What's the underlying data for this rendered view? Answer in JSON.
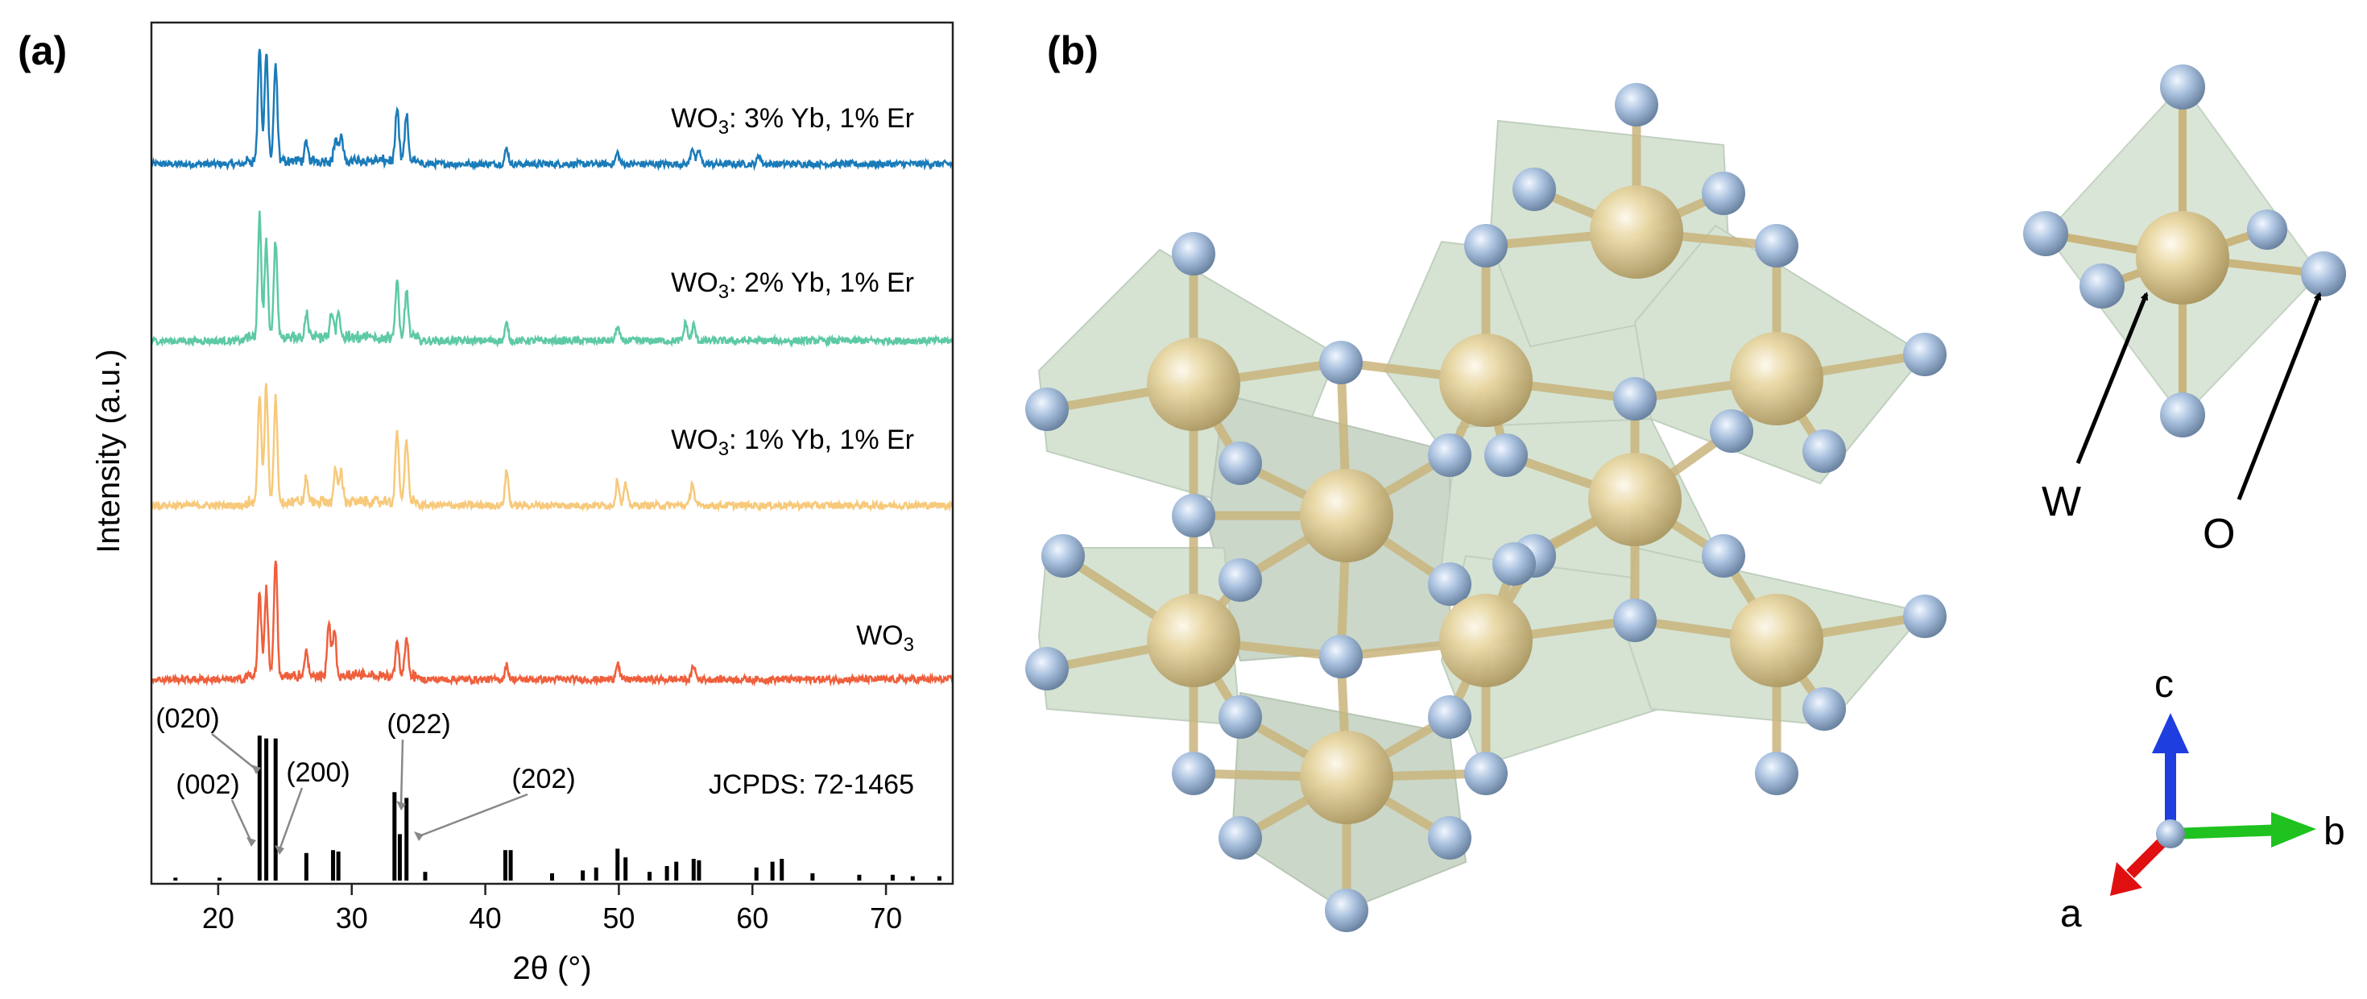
{
  "panel_a": {
    "label": "(a)",
    "chart_data": {
      "type": "line",
      "xlabel": "2θ (°)",
      "ylabel": "Intensity (a.u.)",
      "xlim": [
        15,
        75
      ],
      "xticks": [
        20,
        30,
        40,
        50,
        60,
        70
      ],
      "tick_labels": [
        "20",
        "30",
        "40",
        "50",
        "60",
        "70"
      ],
      "y_values_shown": false,
      "series": [
        {
          "name": "WO3: 3% Yb, 1% Er",
          "label_main": "WO",
          "label_sub": "3",
          "label_rest": ": 3% Yb, 1% Er",
          "color": "#1a7bb9",
          "peaks": [
            [
              23.1,
              1.0
            ],
            [
              23.6,
              0.95
            ],
            [
              24.3,
              0.85
            ],
            [
              26.6,
              0.15
            ],
            [
              28.8,
              0.2
            ],
            [
              29.2,
              0.22
            ],
            [
              33.4,
              0.45
            ],
            [
              34.1,
              0.4
            ],
            [
              41.6,
              0.14
            ],
            [
              49.9,
              0.1
            ],
            [
              55.5,
              0.15
            ],
            [
              56.0,
              0.12
            ],
            [
              60.5,
              0.08
            ]
          ]
        },
        {
          "name": "WO3: 2% Yb, 1% Er",
          "label_main": "WO",
          "label_sub": "3",
          "label_rest": ": 2% Yb, 1% Er",
          "color": "#5ec9a6",
          "peaks": [
            [
              23.1,
              1.0
            ],
            [
              23.6,
              0.8
            ],
            [
              24.3,
              0.8
            ],
            [
              26.6,
              0.2
            ],
            [
              28.5,
              0.2
            ],
            [
              29.0,
              0.22
            ],
            [
              33.4,
              0.45
            ],
            [
              34.1,
              0.4
            ],
            [
              41.6,
              0.14
            ],
            [
              49.9,
              0.12
            ],
            [
              55.0,
              0.15
            ],
            [
              55.6,
              0.13
            ]
          ]
        },
        {
          "name": "WO3: 1% Yb, 1% Er",
          "label_main": "WO",
          "label_sub": "3",
          "label_rest": ": 1% Yb, 1% Er",
          "color": "#f7c97a",
          "peaks": [
            [
              23.1,
              0.95
            ],
            [
              23.6,
              1.0
            ],
            [
              24.3,
              0.9
            ],
            [
              26.6,
              0.2
            ],
            [
              28.8,
              0.28
            ],
            [
              29.2,
              0.26
            ],
            [
              33.4,
              0.6
            ],
            [
              34.1,
              0.55
            ],
            [
              41.6,
              0.3
            ],
            [
              49.9,
              0.22
            ],
            [
              50.5,
              0.18
            ],
            [
              55.5,
              0.2
            ]
          ]
        },
        {
          "name": "WO3",
          "label_main": "WO",
          "label_sub": "3",
          "label_rest": "",
          "color": "#ef5f3c",
          "peaks": [
            [
              23.1,
              0.7
            ],
            [
              23.6,
              0.75
            ],
            [
              24.3,
              1.0
            ],
            [
              26.6,
              0.2
            ],
            [
              28.3,
              0.45
            ],
            [
              28.7,
              0.4
            ],
            [
              33.4,
              0.3
            ],
            [
              34.1,
              0.32
            ],
            [
              41.6,
              0.12
            ],
            [
              49.9,
              0.15
            ],
            [
              55.6,
              0.12
            ]
          ]
        }
      ],
      "reference": {
        "name": "JCPDS: 72-1465",
        "color": "#000000",
        "sticks": [
          [
            16.8,
            0.02
          ],
          [
            20.1,
            0.02
          ],
          [
            23.1,
            1.0
          ],
          [
            23.6,
            0.98
          ],
          [
            24.3,
            0.98
          ],
          [
            26.6,
            0.19
          ],
          [
            28.6,
            0.21
          ],
          [
            29.0,
            0.2
          ],
          [
            33.2,
            0.61
          ],
          [
            33.6,
            0.32
          ],
          [
            34.1,
            0.57
          ],
          [
            35.5,
            0.06
          ],
          [
            41.5,
            0.21
          ],
          [
            41.9,
            0.21
          ],
          [
            45.0,
            0.05
          ],
          [
            47.3,
            0.07
          ],
          [
            48.3,
            0.09
          ],
          [
            49.9,
            0.22
          ],
          [
            50.5,
            0.16
          ],
          [
            52.3,
            0.06
          ],
          [
            53.6,
            0.1
          ],
          [
            54.3,
            0.13
          ],
          [
            55.6,
            0.15
          ],
          [
            56.0,
            0.14
          ],
          [
            60.3,
            0.09
          ],
          [
            61.5,
            0.13
          ],
          [
            62.2,
            0.15
          ],
          [
            64.5,
            0.05
          ],
          [
            68.0,
            0.04
          ],
          [
            70.5,
            0.04
          ],
          [
            72.0,
            0.03
          ],
          [
            74.0,
            0.03
          ]
        ],
        "annotations": [
          {
            "text": "(002)",
            "peak": 23.1
          },
          {
            "text": "(020)",
            "peak": 23.6
          },
          {
            "text": "(200)",
            "peak": 24.3
          },
          {
            "text": "(022)",
            "peak": 33.2
          },
          {
            "text": "(202)",
            "peak": 34.1
          }
        ]
      }
    }
  },
  "panel_b": {
    "label": "(b)",
    "legend": {
      "w_label": "W",
      "o_label": "O"
    },
    "axes": {
      "c_label": "c",
      "b_label": "b",
      "a_label": "a"
    },
    "colors": {
      "w_atom": "#e6d39a",
      "o_atom": "#a8c0dd",
      "octahedron": "#b5cdb0",
      "axis_c": "#1e3ee0",
      "axis_b": "#1fc21f",
      "axis_a": "#e01010"
    }
  }
}
